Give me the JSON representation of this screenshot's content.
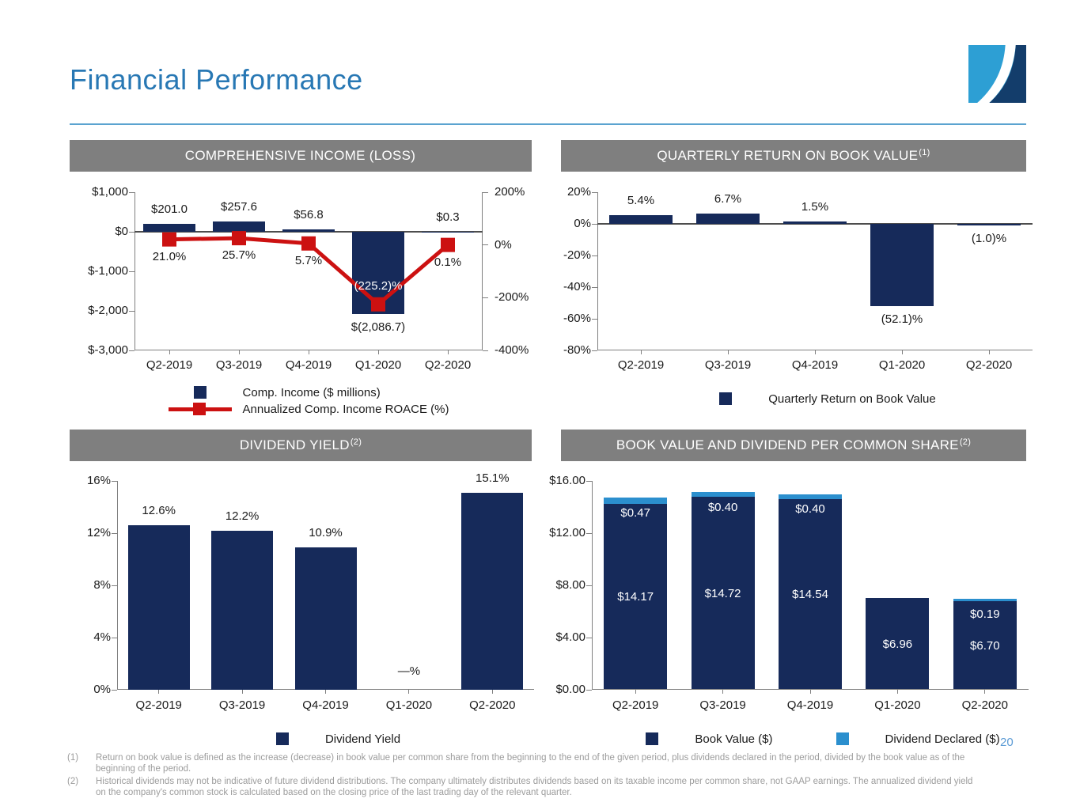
{
  "page": {
    "title": "Financial Performance",
    "page_number": "20",
    "accent_color": "#2878b4",
    "navy": "#162a5a",
    "red": "#cc1111",
    "light_blue": "#2b8fce",
    "banner_gray": "#7f7f7f"
  },
  "footnotes": [
    {
      "marker": "(1)",
      "text": "Return on book value is defined as the increase (decrease) in book value per common share from the beginning to the end of the given period, plus dividends declared in the period, divided by the book value as of the beginning of the period."
    },
    {
      "marker": "(2)",
      "text": "Historical dividends may not be indicative of future dividend distributions.  The company ultimately distributes dividends based on its taxable income per common share, not GAAP earnings.  The annualized dividend yield on the company's common stock is calculated based on the closing price of the last trading day of the relevant quarter."
    }
  ],
  "chart_data": [
    {
      "id": "comprehensive-income",
      "type": "bar-line",
      "title": "COMPREHENSIVE INCOME (LOSS)",
      "title_superscript": "",
      "categories": [
        "Q2-2019",
        "Q3-2019",
        "Q4-2019",
        "Q1-2020",
        "Q2-2020"
      ],
      "bar_series": {
        "name": "Comp. Income ($ millions)",
        "values": [
          201.0,
          257.6,
          56.8,
          -2086.7,
          0.3
        ],
        "labels": [
          "$201.0",
          "$257.6",
          "$56.8",
          "$(2,086.7)",
          "$0.3"
        ],
        "color": "#162a5a"
      },
      "line_series": {
        "name": "Annualized Comp. Income ROACE (%)",
        "values": [
          21.0,
          25.7,
          5.7,
          -225.2,
          0.1
        ],
        "labels": [
          "21.0%",
          "25.7%",
          "5.7%",
          "(225.2)%",
          "0.1%"
        ],
        "color": "#cc1111"
      },
      "left_axis": {
        "ticks": [
          "$1,000",
          "$0",
          "$-1,000",
          "$-2,000",
          "$-3,000"
        ],
        "min": -3000,
        "max": 1000
      },
      "right_axis": {
        "ticks": [
          "200%",
          "0%",
          "-200%",
          "-400%"
        ],
        "min": -400,
        "max": 200
      },
      "legend_position": "bottom"
    },
    {
      "id": "quarterly-return",
      "type": "bar",
      "title": "QUARTERLY RETURN ON BOOK VALUE",
      "title_superscript": "(1)",
      "categories": [
        "Q2-2019",
        "Q3-2019",
        "Q4-2019",
        "Q1-2020",
        "Q2-2020"
      ],
      "bar_series": {
        "name": "Quarterly Return on Book Value",
        "values": [
          5.4,
          6.7,
          1.5,
          -52.1,
          -1.0
        ],
        "labels": [
          "5.4%",
          "6.7%",
          "1.5%",
          "(52.1)%",
          "(1.0)%"
        ],
        "color": "#162a5a"
      },
      "left_axis": {
        "ticks": [
          "20%",
          "0%",
          "-20%",
          "-40%",
          "-60%",
          "-80%"
        ],
        "min": -80,
        "max": 20
      },
      "legend_position": "bottom"
    },
    {
      "id": "dividend-yield",
      "type": "bar",
      "title": "DIVIDEND YIELD",
      "title_superscript": "(2)",
      "categories": [
        "Q2-2019",
        "Q3-2019",
        "Q4-2019",
        "Q1-2020",
        "Q2-2020"
      ],
      "bar_series": {
        "name": "Dividend Yield",
        "values": [
          12.6,
          12.2,
          10.9,
          null,
          15.1
        ],
        "labels": [
          "12.6%",
          "12.2%",
          "10.9%",
          "—%",
          "15.1%"
        ],
        "color": "#162a5a"
      },
      "left_axis": {
        "ticks": [
          "16%",
          "12%",
          "8%",
          "4%",
          "0%"
        ],
        "min": 0,
        "max": 16
      },
      "legend_position": "bottom"
    },
    {
      "id": "book-value-dividend",
      "type": "stacked-bar",
      "title": "BOOK VALUE AND DIVIDEND PER COMMON SHARE",
      "title_superscript": "(2)",
      "categories": [
        "Q2-2019",
        "Q3-2019",
        "Q4-2019",
        "Q1-2020",
        "Q2-2020"
      ],
      "series": [
        {
          "name": "Book Value ($)",
          "values": [
            14.17,
            14.72,
            14.54,
            6.96,
            6.7
          ],
          "labels": [
            "$14.17",
            "$14.72",
            "$14.54",
            "$6.96",
            "$6.70"
          ],
          "color": "#162a5a"
        },
        {
          "name": "Dividend Declared ($)",
          "values": [
            0.47,
            0.4,
            0.4,
            0,
            0.19
          ],
          "labels": [
            "$0.47",
            "$0.40",
            "$0.40",
            "",
            "$0.19"
          ],
          "color": "#2b8fce"
        }
      ],
      "left_axis": {
        "ticks": [
          "$16.00",
          "$12.00",
          "$8.00",
          "$4.00",
          "$0.00"
        ],
        "min": 0,
        "max": 16
      },
      "legend_position": "bottom"
    }
  ]
}
